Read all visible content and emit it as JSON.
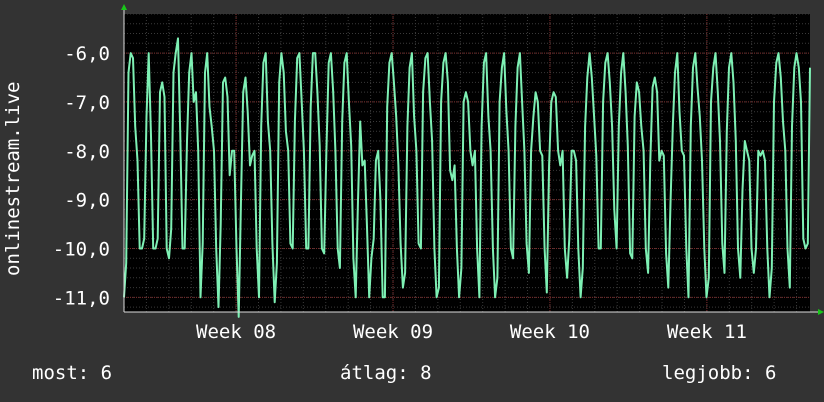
{
  "colors": {
    "background": "#333333",
    "plot_background": "#000000",
    "grid_major": "#7a2a2a",
    "grid_minor": "#3a3a3a",
    "line": "#7ef0b4",
    "axis_arrow": "#19c619",
    "text": "#ffffff"
  },
  "chart_data": {
    "type": "line",
    "ylabel": "onlinestream.live",
    "yticks": [
      "-6,0",
      "-7,0",
      "-8,0",
      "-9,0",
      "-10,0",
      "-11,0"
    ],
    "ytick_values": [
      -6,
      -7,
      -8,
      -9,
      -10,
      -11
    ],
    "ylim": [
      -11.3,
      -5.2
    ],
    "xticks": [
      "Week 08",
      "Week 09",
      "Week 10",
      "Week 11"
    ],
    "xtick_days": [
      5,
      12,
      19,
      26
    ],
    "xlim_days": [
      0,
      30.6
    ],
    "grid": true,
    "series": [
      {
        "y": [
          -11.0,
          -10.3,
          -6.4,
          -6.0,
          -6.1,
          -7.5,
          -8.2,
          -10.0,
          -10.0,
          -9.8,
          -7.3,
          -6.0,
          -7.7,
          -10.0,
          -10.0,
          -9.8,
          -6.8,
          -6.6,
          -6.9,
          -10.0,
          -10.2,
          -9.6,
          -6.4,
          -6.0,
          -5.7,
          -7.6,
          -10.0,
          -10.0,
          -7.8,
          -6.4,
          -6.0,
          -7.0,
          -6.8,
          -8.0,
          -11.0,
          -9.9,
          -6.4,
          -6.0,
          -7.1,
          -7.5,
          -8.0,
          -10.0,
          -11.2,
          -9.5,
          -6.6,
          -6.5,
          -6.9,
          -8.5,
          -8.0,
          -8.0,
          -10.0,
          -11.4,
          -9.0,
          -6.8,
          -6.5,
          -7.2,
          -8.3,
          -8.1,
          -8.0,
          -10.0,
          -11.0,
          -7.5,
          -6.2,
          -6.0,
          -7.4,
          -8.0,
          -9.9,
          -11.1,
          -10.3,
          -6.6,
          -6.0,
          -6.4,
          -7.6,
          -8.0,
          -9.9,
          -10.0,
          -7.4,
          -6.1,
          -6.0,
          -7.0,
          -8.0,
          -10.0,
          -10.0,
          -7.1,
          -6.0,
          -6.0,
          -6.8,
          -7.9,
          -10.0,
          -10.1,
          -8.0,
          -6.2,
          -6.0,
          -6.8,
          -8.0,
          -10.0,
          -10.4,
          -7.4,
          -6.2,
          -6.0,
          -7.0,
          -7.9,
          -10.2,
          -11.0,
          -9.1,
          -7.4,
          -8.3,
          -8.2,
          -9.5,
          -11.0,
          -10.2,
          -9.8,
          -8.2,
          -8.0,
          -9.0,
          -11.0,
          -11.0,
          -7.1,
          -6.2,
          -6.0,
          -6.6,
          -7.3,
          -8.3,
          -9.9,
          -10.8,
          -10.5,
          -7.5,
          -6.3,
          -6.0,
          -7.3,
          -8.0,
          -9.9,
          -10.0,
          -6.8,
          -6.1,
          -6.0,
          -7.0,
          -7.8,
          -10.0,
          -11.0,
          -10.8,
          -7.0,
          -6.2,
          -6.0,
          -6.6,
          -8.4,
          -8.6,
          -8.3,
          -10.0,
          -11.0,
          -10.4,
          -7.0,
          -6.8,
          -7.0,
          -8.0,
          -8.3,
          -8.0,
          -10.0,
          -11.0,
          -7.5,
          -6.2,
          -6.0,
          -7.3,
          -8.0,
          -10.0,
          -11.0,
          -10.6,
          -7.0,
          -6.3,
          -6.0,
          -7.2,
          -8.0,
          -10.0,
          -10.2,
          -7.5,
          -6.3,
          -6.0,
          -7.0,
          -8.0,
          -9.9,
          -10.5,
          -8.0,
          -7.3,
          -6.8,
          -7.0,
          -8.0,
          -8.1,
          -10.0,
          -10.9,
          -8.3,
          -7.0,
          -6.8,
          -6.9,
          -8.0,
          -8.3,
          -8.0,
          -10.0,
          -10.6,
          -9.8,
          -8.0,
          -8.0,
          -8.2,
          -10.0,
          -11.0,
          -10.4,
          -7.5,
          -6.5,
          -6.0,
          -6.5,
          -7.3,
          -8.1,
          -10.0,
          -10.0,
          -7.0,
          -6.2,
          -6.0,
          -6.6,
          -7.5,
          -9.2,
          -10.0,
          -7.5,
          -6.4,
          -6.0,
          -6.8,
          -7.9,
          -10.1,
          -10.2,
          -7.3,
          -6.6,
          -6.8,
          -7.5,
          -8.0,
          -10.0,
          -10.5,
          -8.2,
          -6.7,
          -6.5,
          -6.8,
          -8.2,
          -8.0,
          -8.1,
          -10.1,
          -10.8,
          -9.0,
          -7.5,
          -6.4,
          -6.0,
          -7.2,
          -8.0,
          -8.1,
          -10.0,
          -11.0,
          -7.5,
          -6.3,
          -6.0,
          -6.7,
          -7.3,
          -8.2,
          -10.0,
          -11.0,
          -10.6,
          -7.0,
          -6.3,
          -6.0,
          -6.8,
          -7.8,
          -9.9,
          -10.5,
          -7.6,
          -6.3,
          -6.0,
          -6.6,
          -7.8,
          -10.0,
          -10.6,
          -8.8,
          -7.8,
          -8.0,
          -8.2,
          -10.0,
          -10.5,
          -10.0,
          -8.0,
          -8.1,
          -8.0,
          -8.2,
          -10.0,
          -11.0,
          -10.4,
          -7.0,
          -6.2,
          -6.0,
          -6.5,
          -7.4,
          -8.0,
          -10.0,
          -10.8,
          -7.5,
          -6.3,
          -6.0,
          -6.3,
          -7.0,
          -9.8,
          -10.0,
          -9.9,
          -6.3
        ],
        "x_start_day": 0,
        "x_end_day": 30.6
      }
    ]
  },
  "stats": {
    "current": "most: 6",
    "average": "átlag: 8",
    "max": "legjobb: 6"
  }
}
